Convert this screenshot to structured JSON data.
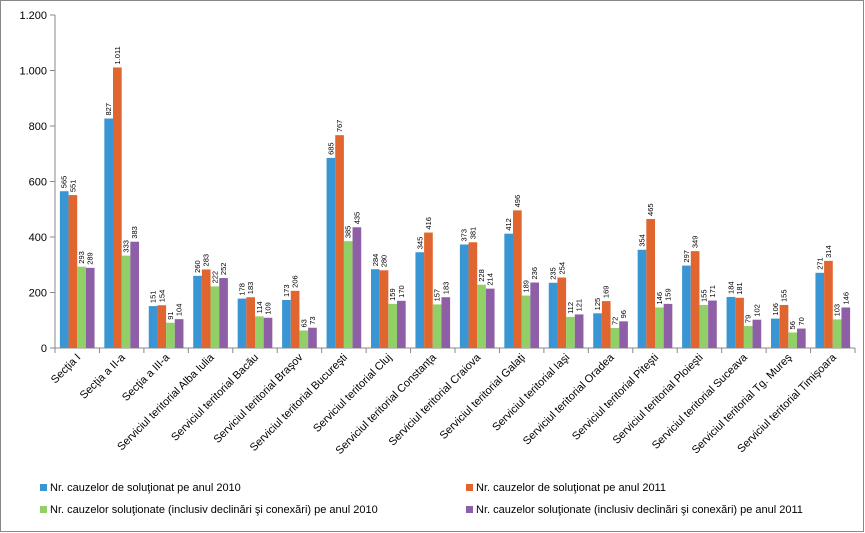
{
  "chart_data": {
    "type": "bar",
    "categories": [
      "Secţia I",
      "Secţia a II-a",
      "Secţia a III-a",
      "Serviciul teritorial Alba Iulia",
      "Serviciul teritorial Bacău",
      "Serviciul teritorial  Braşov",
      "Serviciul teritorial  Bucureşti",
      "Serviciul teritorial Cluj",
      "Serviciul teritorial  Constanţa",
      "Serviciul teritorial Craiova",
      "Serviciul teritorial Galaţi",
      "Serviciul teritorial Iaşi",
      "Serviciul teritorial Oradea",
      "Serviciul teritorial Piteşti",
      "Serviciul teritorial Ploieşti",
      "Serviciul teritorial Suceava",
      "Serviciul teritorial Tg. Mureş",
      "Serviciul teritorial Timişoara"
    ],
    "series": [
      {
        "name": "Nr. cauzelor de soluţionat pe anul 2010",
        "color": "#3a95d4",
        "values": [
          565,
          827,
          151,
          260,
          178,
          173,
          685,
          284,
          345,
          373,
          412,
          235,
          125,
          354,
          297,
          184,
          106,
          271
        ]
      },
      {
        "name": "Nr. cauzelor de soluţionat pe anul 2011",
        "color": "#e0652e",
        "values": [
          551,
          1011,
          154,
          283,
          183,
          206,
          767,
          280,
          416,
          381,
          496,
          254,
          169,
          465,
          349,
          181,
          155,
          314
        ],
        "value_labels": [
          "551",
          "1.011",
          "154",
          "283",
          "183",
          "206",
          "767",
          "280",
          "416",
          "381",
          "496",
          "254",
          "169",
          "465",
          "349",
          "181",
          "155",
          "314"
        ]
      },
      {
        "name": "Nr. cauzelor soluţionate (inclusiv declinări şi conexări) pe anul 2010",
        "color": "#91d066",
        "values": [
          293,
          333,
          91,
          222,
          114,
          63,
          385,
          159,
          157,
          228,
          189,
          112,
          72,
          146,
          155,
          79,
          56,
          103
        ]
      },
      {
        "name": "Nr. cauzelor soluţionate (inclusiv declinări şi conexări) pe anul 2011",
        "color": "#8e5fa6",
        "values": [
          289,
          383,
          104,
          252,
          109,
          73,
          435,
          170,
          183,
          214,
          236,
          121,
          96,
          159,
          171,
          102,
          70,
          146
        ]
      }
    ],
    "ylim": [
      0,
      1200
    ],
    "yticks": [
      0,
      200,
      400,
      600,
      800,
      {
        "value": 1000,
        "label": "1.000"
      },
      {
        "value": 1200,
        "label": "1.200"
      }
    ],
    "grid": false
  }
}
